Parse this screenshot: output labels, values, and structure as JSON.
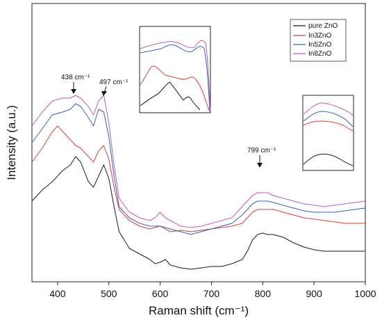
{
  "chart_data": {
    "type": "line",
    "title": "",
    "xlabel": "Raman shift (cm⁻¹)",
    "ylabel": "Intensity (a.u.)",
    "xlim": [
      350,
      1000
    ],
    "ylim": [
      0,
      100
    ],
    "x_ticks": [
      400,
      500,
      600,
      700,
      800,
      900,
      1000
    ],
    "y_ticks_shown": false,
    "grid": false,
    "legend_position": "top-right",
    "series": [
      {
        "name": "pure ZnO",
        "color": "#1a1a1a",
        "x": [
          350,
          370,
          390,
          410,
          425,
          435,
          445,
          460,
          470,
          480,
          490,
          500,
          510,
          520,
          540,
          560,
          580,
          590,
          600,
          610,
          620,
          640,
          660,
          680,
          700,
          720,
          740,
          760,
          770,
          780,
          790,
          800,
          810,
          820,
          830,
          840,
          860,
          880,
          900,
          920,
          940,
          960,
          980,
          1000
        ],
        "y": [
          29,
          33,
          36,
          40,
          42,
          45,
          43,
          36,
          34,
          38,
          42,
          37,
          27,
          18,
          12,
          10,
          8,
          6.5,
          7,
          8,
          6,
          5,
          4.5,
          5,
          5.5,
          5.5,
          6.5,
          8,
          11,
          15,
          17,
          17.5,
          17,
          17,
          16.5,
          16,
          14,
          12.5,
          11.5,
          11,
          11,
          11,
          11,
          11
        ]
      },
      {
        "name": "In3ZnO",
        "color": "#d93a3a",
        "x": [
          350,
          370,
          390,
          400,
          410,
          425,
          435,
          445,
          460,
          470,
          480,
          490,
          500,
          510,
          520,
          540,
          560,
          580,
          600,
          610,
          620,
          640,
          660,
          680,
          700,
          720,
          740,
          760,
          770,
          780,
          790,
          800,
          810,
          820,
          830,
          840,
          860,
          880,
          900,
          920,
          940,
          960,
          980,
          1000
        ],
        "y": [
          43,
          48,
          54,
          56,
          54,
          51,
          49,
          48,
          45,
          43,
          47,
          49,
          44,
          34,
          26,
          22,
          20,
          19,
          20,
          19,
          18,
          18.5,
          18,
          18.5,
          19,
          19.5,
          20,
          21,
          23,
          25,
          26,
          26,
          26,
          26,
          25.5,
          25,
          24,
          23,
          22.5,
          22,
          21.5,
          21,
          21,
          21
        ]
      },
      {
        "name": "In5ZnO",
        "color": "#3a5fb8",
        "x": [
          350,
          370,
          390,
          410,
          425,
          435,
          445,
          460,
          470,
          480,
          490,
          500,
          510,
          520,
          540,
          560,
          580,
          600,
          620,
          640,
          660,
          680,
          700,
          720,
          740,
          760,
          770,
          780,
          790,
          800,
          810,
          820,
          830,
          840,
          860,
          880,
          900,
          920,
          940,
          960,
          980,
          1000
        ],
        "y": [
          50,
          55,
          60,
          61,
          62,
          64,
          63,
          59,
          56,
          62,
          61,
          52,
          38,
          27,
          23,
          21,
          20,
          20,
          19,
          18,
          17,
          18,
          19,
          20,
          21,
          24,
          26,
          28,
          29,
          29,
          29,
          28.5,
          28,
          27.5,
          26.5,
          25.5,
          25,
          25,
          25,
          25.5,
          26,
          26.5
        ]
      },
      {
        "name": "In8ZnO",
        "color": "#c25ab5",
        "x": [
          350,
          370,
          390,
          410,
          425,
          435,
          445,
          460,
          470,
          480,
          490,
          500,
          510,
          520,
          540,
          560,
          580,
          590,
          600,
          610,
          620,
          640,
          660,
          680,
          700,
          720,
          740,
          760,
          770,
          780,
          790,
          800,
          810,
          820,
          830,
          840,
          860,
          880,
          900,
          920,
          940,
          960,
          980,
          1000
        ],
        "y": [
          56,
          61,
          65,
          66,
          66,
          67,
          66,
          63,
          60,
          65,
          67,
          57,
          42,
          30,
          25,
          23,
          22,
          23,
          25,
          23,
          22,
          20,
          19.5,
          20,
          21,
          22,
          23,
          27,
          29,
          31,
          32,
          32,
          32,
          31,
          30.5,
          30,
          29,
          28,
          27.5,
          27,
          27.5,
          28,
          28.5,
          29
        ]
      }
    ],
    "annotations": [
      {
        "id": "anno-438",
        "label": "438 cm⁻¹",
        "x": 438
      },
      {
        "id": "anno-497",
        "label": "497 cm⁻¹",
        "x": 497
      },
      {
        "id": "anno-799",
        "label": "799 cm⁻¹",
        "x": 799
      }
    ],
    "insets": [
      {
        "id": "inset-left",
        "region": "zoom of 438-497 cm⁻¹ peaks"
      },
      {
        "id": "inset-right",
        "region": "zoom of 799 cm⁻¹ band"
      }
    ]
  }
}
